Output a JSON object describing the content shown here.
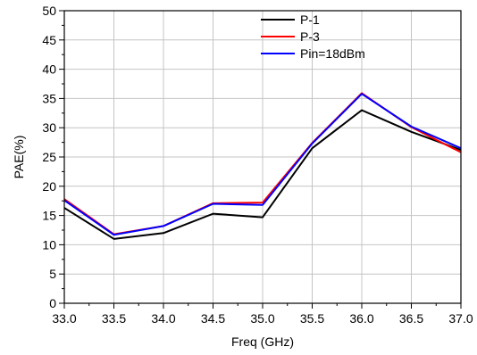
{
  "chart_data": {
    "type": "line",
    "xlabel": "Freq (GHz)",
    "ylabel": "PAE(%)",
    "xlim": [
      33.0,
      37.0
    ],
    "ylim": [
      0,
      50
    ],
    "grid": true,
    "legend_position": "top-right",
    "x_ticks": [
      "33.0",
      "33.5",
      "34.0",
      "34.5",
      "35.0",
      "35.5",
      "36.0",
      "36.5",
      "37.0"
    ],
    "y_ticks": [
      "0",
      "5",
      "10",
      "15",
      "20",
      "25",
      "30",
      "35",
      "40",
      "45",
      "50"
    ],
    "x": [
      33.0,
      33.5,
      34.0,
      34.5,
      35.0,
      35.5,
      36.0,
      36.5,
      37.0
    ],
    "series": [
      {
        "name": "P-1",
        "color": "#000000",
        "values": [
          16.3,
          11.0,
          12.0,
          15.3,
          14.7,
          26.5,
          33.0,
          29.3,
          26.2
        ]
      },
      {
        "name": "P-3",
        "color": "#ff0000",
        "values": [
          17.8,
          11.8,
          13.2,
          17.1,
          17.2,
          27.4,
          35.9,
          30.1,
          25.8
        ]
      },
      {
        "name": "Pin=18dBm",
        "color": "#0000ff",
        "values": [
          17.6,
          11.7,
          13.2,
          17.0,
          16.8,
          27.3,
          35.8,
          30.2,
          26.5
        ]
      }
    ]
  }
}
